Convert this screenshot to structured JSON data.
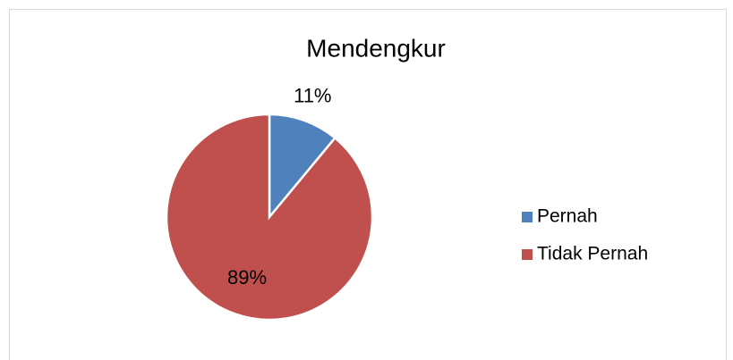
{
  "chart_data": {
    "type": "pie",
    "title": "Mendengkur",
    "categories": [
      "Pernah",
      "Tidak Pernah"
    ],
    "values": [
      11,
      89
    ],
    "value_labels": [
      "11%",
      "89%"
    ],
    "colors": [
      "#4f81bd",
      "#c0504d"
    ],
    "legend": "right"
  }
}
